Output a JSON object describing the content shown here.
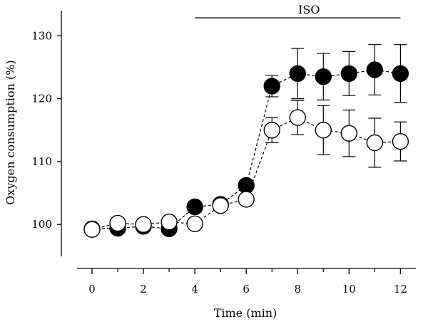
{
  "chart_data": {
    "type": "scatter",
    "xlabel": "Time (min)",
    "ylabel": "Oxygen consumption (%)",
    "xlim": [
      -0.5,
      12.6
    ],
    "ylim": [
      93,
      134
    ],
    "xticks": [
      0,
      2,
      4,
      6,
      8,
      10,
      12
    ],
    "yticks": [
      100,
      110,
      120,
      130
    ],
    "x_minor_ticks": [
      1,
      3,
      5,
      7,
      9,
      11
    ],
    "annotation": {
      "label": "ISO",
      "x_start": 4,
      "x_end": 12
    },
    "grid": false,
    "series": [
      {
        "marker": "filled-circle",
        "line": "dashed",
        "color": "#000000",
        "x": [
          0,
          1,
          2,
          3,
          4,
          5,
          6,
          7,
          8,
          9,
          10,
          11,
          12
        ],
        "y": [
          99.3,
          99.4,
          99.7,
          99.3,
          102.8,
          103.2,
          106.2,
          122.0,
          124.0,
          123.5,
          124.0,
          124.6,
          124.0
        ],
        "err": [
          0.4,
          0.4,
          0.4,
          0.4,
          0.9,
          0.6,
          0.7,
          1.7,
          4.0,
          3.7,
          3.5,
          4.0,
          4.6
        ]
      },
      {
        "marker": "open-circle",
        "line": "dashed",
        "color": "#000000",
        "x": [
          0,
          1,
          2,
          3,
          4,
          5,
          6,
          7,
          8,
          9,
          10,
          11,
          12
        ],
        "y": [
          99.2,
          100.2,
          100.0,
          100.4,
          100.1,
          103.0,
          104.0,
          115.0,
          117.0,
          115.0,
          114.5,
          113.0,
          113.2
        ],
        "err": [
          0.3,
          0.3,
          0.3,
          0.3,
          0.4,
          0.5,
          0.6,
          2.0,
          2.7,
          3.9,
          3.7,
          3.9,
          3.1
        ]
      }
    ]
  }
}
